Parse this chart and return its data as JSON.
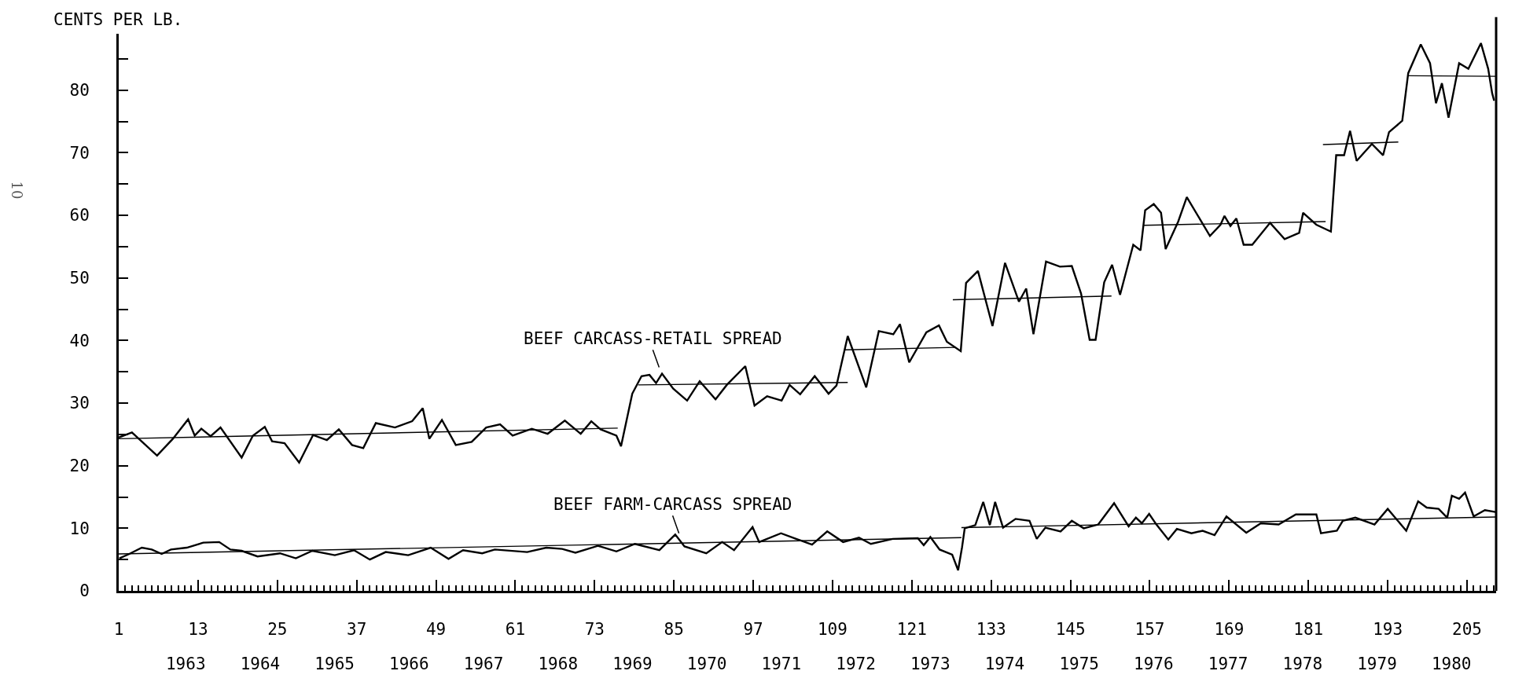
{
  "chart_data": {
    "type": "line",
    "ylabel": "CENTS PER LB.",
    "annotations": [
      "10",
      {
        "text": "BEEF CARCASS-RETAIL SPREAD",
        "x": 83,
        "y": 35
      },
      {
        "text": "BEEF FARM-CARCASS SPREAD",
        "x": 86,
        "y": 8.5
      }
    ],
    "series": [
      {
        "color": "#000000",
        "x": [
          1,
          3.0,
          6.8,
          9.2,
          11.5,
          12.5,
          13.5,
          14.9,
          16.4,
          19.6,
          21.3,
          23.1,
          24.2,
          26.1,
          28.3,
          30.4,
          32.5,
          34.3,
          36.3,
          38.0,
          39.9,
          42.8,
          45.4,
          47.0,
          48.0,
          49.9,
          52.0,
          54.4,
          56.6,
          58.7,
          60.6,
          63.5,
          65.9,
          68.5,
          70.9,
          72.5,
          73.9,
          76.3,
          77.0,
          78.7,
          80.1,
          81.3,
          82.3,
          83.2,
          84.9,
          87.0,
          88.9,
          91.3,
          93.0,
          95.8,
          97.2,
          99.1,
          101.3,
          102.5,
          104.1,
          106.3,
          108.4,
          109.6,
          111.3,
          114.1,
          116.0,
          118.2,
          119.2,
          120.6,
          123.2,
          125.1,
          126.3,
          128.4,
          129.2,
          131.0,
          133.2,
          135.1,
          137.2,
          138.3,
          139.4,
          141.3,
          143.4,
          145.2,
          146.6,
          147.9,
          148.8,
          150.1,
          151.3,
          152.5,
          154.5,
          155.6,
          156.3,
          157.6,
          158.7,
          159.4,
          161.3,
          162.6,
          166.1,
          167.7,
          168.3,
          169.2,
          170.1,
          171.2,
          172.5,
          175.2,
          177.4,
          179.6,
          180.2,
          182.2,
          184.4,
          184.8,
          185.2,
          186.4,
          187.3,
          188.3,
          190.6,
          192.3,
          193.2,
          195.2,
          196.1,
          198.0,
          199.4,
          200.3,
          201.2,
          202.2,
          203.8,
          205.2,
          207.1,
          208.2,
          208.8,
          209.1
        ],
        "values": [
          24.5,
          25.3,
          21.6,
          24.3,
          27.4,
          24.8,
          25.9,
          24.7,
          26.1,
          21.3,
          24.8,
          26.2,
          23.9,
          23.6,
          20.5,
          24.9,
          24.1,
          25.8,
          23.3,
          22.8,
          26.8,
          26.1,
          27.1,
          29.2,
          24.3,
          27.3,
          23.3,
          23.8,
          26.1,
          26.6,
          24.8,
          25.9,
          25.1,
          27.2,
          25.1,
          27.1,
          25.8,
          24.8,
          23.1,
          31.5,
          34.3,
          34.5,
          33.2,
          34.7,
          32.3,
          30.4,
          33.5,
          30.6,
          32.9,
          35.9,
          29.6,
          31.1,
          30.4,
          32.9,
          31.4,
          34.3,
          31.5,
          32.8,
          40.7,
          32.5,
          41.5,
          41.0,
          42.6,
          36.5,
          41.3,
          42.4,
          39.8,
          38.3,
          49.2,
          51.1,
          42.3,
          52.4,
          46.2,
          48.3,
          41.0,
          52.6,
          51.8,
          51.9,
          47.5,
          40.1,
          40.1,
          49.3,
          52.1,
          47.3,
          55.3,
          54.4,
          60.8,
          61.8,
          60.4,
          54.6,
          59.0,
          62.9,
          56.7,
          58.5,
          59.9,
          58.3,
          59.5,
          55.3,
          55.3,
          58.8,
          56.2,
          57.2,
          60.4,
          58.5,
          57.4,
          63.6,
          69.6,
          69.6,
          73.5,
          68.7,
          71.4,
          69.6,
          73.3,
          75.1,
          82.7,
          87.3,
          84.3,
          77.9,
          81.1,
          75.6,
          84.3,
          83.4,
          87.5,
          83.4,
          79.5,
          78.3
        ]
      },
      {
        "color": "#000000",
        "x": [
          1.1,
          2.6,
          4.5,
          6.0,
          7.5,
          8.9,
          11.3,
          13.8,
          16.2,
          17.9,
          19.6,
          22.0,
          25.4,
          27.8,
          30.3,
          33.7,
          36.6,
          39.0,
          41.4,
          44.8,
          48.2,
          50.9,
          53.1,
          56.0,
          57.9,
          62.8,
          65.7,
          68.1,
          70.1,
          73.5,
          76.3,
          79.1,
          82.8,
          85.2,
          86.6,
          89.9,
          92.3,
          94.1,
          96.9,
          97.9,
          101.2,
          103.5,
          105.9,
          108.2,
          110.6,
          113.0,
          114.8,
          118.1,
          121.9,
          122.8,
          123.8,
          125.2,
          127.1,
          128.0,
          128.6,
          129.0,
          130.6,
          131.8,
          132.8,
          133.6,
          134.8,
          136.7,
          138.8,
          139.9,
          141.2,
          143.5,
          145.2,
          147.0,
          149.2,
          151.6,
          153.8,
          154.9,
          155.8,
          156.9,
          158.0,
          159.8,
          161.1,
          163.3,
          165.0,
          166.8,
          168.6,
          171.6,
          173.8,
          176.5,
          179.1,
          182.2,
          182.9,
          185.3,
          186.2,
          188.1,
          191.0,
          193.0,
          195.8,
          197.6,
          198.9,
          200.7,
          202.0,
          202.7,
          203.8,
          204.7,
          206.0,
          207.7,
          209.3
        ],
        "values": [
          5.2,
          5.9,
          6.9,
          6.6,
          5.9,
          6.6,
          6.9,
          7.7,
          7.8,
          6.6,
          6.4,
          5.5,
          6.0,
          5.2,
          6.4,
          5.7,
          6.5,
          5.0,
          6.2,
          5.7,
          6.9,
          5.1,
          6.5,
          6.0,
          6.6,
          6.2,
          6.9,
          6.7,
          6.1,
          7.2,
          6.3,
          7.5,
          6.5,
          9.0,
          7.1,
          6.0,
          7.8,
          6.5,
          10.2,
          7.8,
          9.2,
          8.3,
          7.4,
          9.5,
          7.8,
          8.5,
          7.5,
          8.3,
          8.4,
          7.3,
          8.6,
          6.6,
          5.8,
          3.3,
          7.0,
          10.0,
          10.5,
          14.2,
          10.5,
          14.2,
          10.1,
          11.5,
          11.2,
          8.3,
          10.1,
          9.5,
          11.2,
          10.0,
          10.6,
          14.0,
          10.3,
          11.7,
          10.8,
          12.3,
          10.6,
          8.2,
          9.9,
          9.2,
          9.6,
          8.9,
          11.9,
          9.3,
          10.8,
          10.6,
          12.2,
          12.2,
          9.2,
          9.6,
          11.2,
          11.7,
          10.6,
          13.1,
          9.6,
          14.3,
          13.3,
          13.1,
          11.7,
          15.2,
          14.7,
          15.7,
          11.9,
          12.9,
          12.6
        ]
      },
      {
        "color": "#000000",
        "x": [
          1,
          76.5
        ],
        "values": [
          24.3,
          26.0
        ]
      },
      {
        "color": "#000000",
        "x": [
          79.6,
          111.3
        ],
        "values": [
          32.9,
          33.3
        ]
      },
      {
        "color": "#000000",
        "x": [
          110.9,
          127.7
        ],
        "values": [
          38.5,
          38.9
        ]
      },
      {
        "color": "#000000",
        "x": [
          127.2,
          151.2
        ],
        "values": [
          46.5,
          47.1
        ]
      },
      {
        "color": "#000000",
        "x": [
          156.1,
          183.6
        ],
        "values": [
          58.4,
          59.0
        ]
      },
      {
        "color": "#000000",
        "x": [
          183.2,
          194.6
        ],
        "values": [
          71.3,
          71.7
        ]
      },
      {
        "color": "#000000",
        "x": [
          196.1,
          209.4
        ],
        "values": [
          82.3,
          82.2
        ]
      },
      {
        "color": "#000000",
        "x": [
          1,
          128.5
        ],
        "values": [
          5.9,
          8.5
        ]
      },
      {
        "color": "#000000",
        "x": [
          128.5,
          209.3
        ],
        "values": [
          10.1,
          11.8
        ]
      }
    ],
    "xlim": [
      1,
      209.4
    ],
    "xticks": [
      1,
      13,
      25,
      37,
      49,
      61,
      73,
      85,
      97,
      109,
      121,
      133,
      145,
      157,
      169,
      181,
      193,
      205
    ],
    "x2lim": [
      1962.1,
      1980.6
    ],
    "x2ticks": [
      1963,
      1964,
      1965,
      1966,
      1967,
      1968,
      1969,
      1970,
      1971,
      1972,
      1973,
      1974,
      1975,
      1976,
      1977,
      1978,
      1979,
      1980
    ],
    "ylim": [
      0,
      89
    ],
    "yticks": [
      0,
      {
        "value": 5,
        "label": null
      },
      10,
      {
        "value": 15,
        "label": null
      },
      20,
      {
        "value": 25,
        "label": null
      },
      30,
      {
        "value": 35,
        "label": null
      },
      40,
      {
        "value": 45,
        "label": null
      },
      50,
      {
        "value": 55,
        "label": null
      },
      60,
      {
        "value": 65,
        "label": null
      },
      70,
      {
        "value": 75,
        "label": null
      },
      80,
      {
        "value": 85,
        "label": null
      }
    ],
    "marker": "none",
    "line_style": "solid"
  }
}
